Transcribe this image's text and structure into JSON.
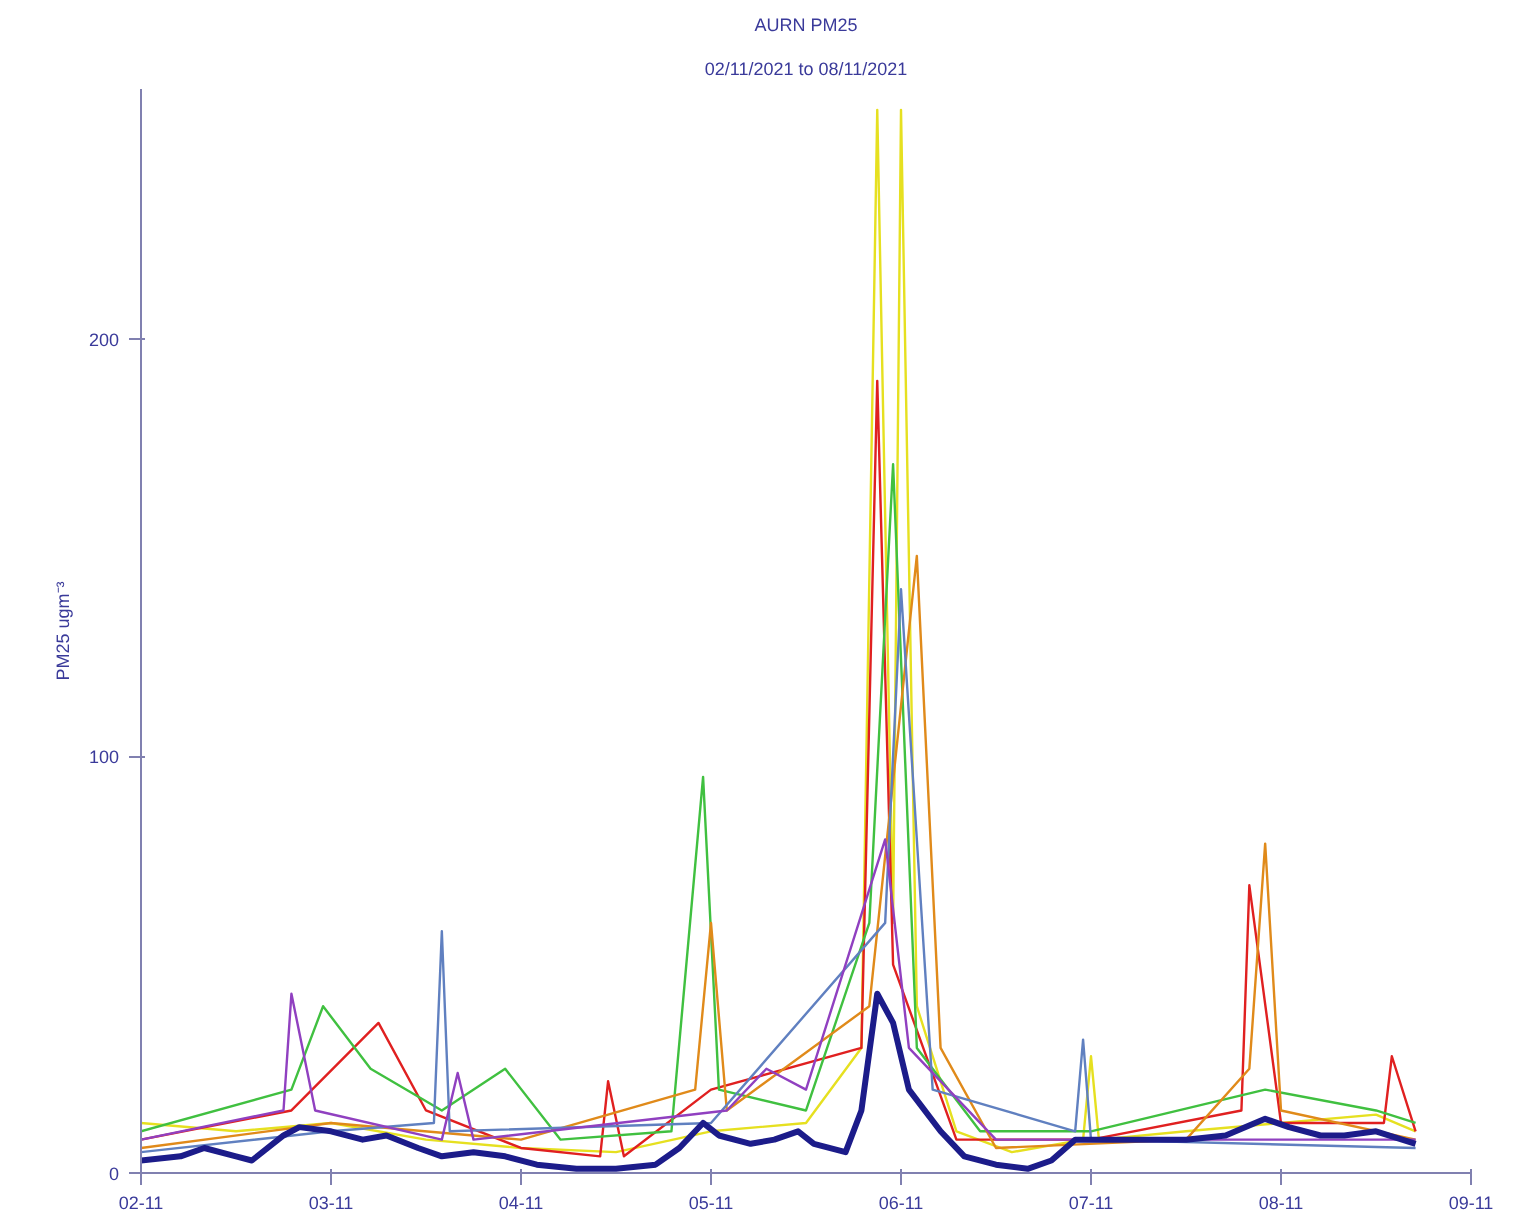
{
  "chart_data": {
    "type": "line",
    "title": "AURN PM25",
    "subtitle": "02/11/2021 to 08/11/2021",
    "ylabel": "PM25 ugm⁻³",
    "xlim": [
      "2021-11-02",
      "2021-11-09"
    ],
    "xticks": [
      {
        "value": "2021-11-02",
        "label": "02-11"
      },
      {
        "value": "2021-11-03",
        "label": "03-11"
      },
      {
        "value": "2021-11-04",
        "label": "04-11"
      },
      {
        "value": "2021-11-05",
        "label": "05-11"
      },
      {
        "value": "2021-11-06",
        "label": "06-11"
      },
      {
        "value": "2021-11-07",
        "label": "07-11"
      },
      {
        "value": "2021-11-08",
        "label": "08-11"
      },
      {
        "value": "2021-11-09",
        "label": "09-11"
      }
    ],
    "ylim": [
      0,
      260
    ],
    "yticks": [
      0,
      100,
      200
    ],
    "grid": false,
    "series": [
      {
        "color": "#e6e020",
        "x": [
          "2021-11-02T00:00",
          "2021-11-02T12:00",
          "2021-11-03T00:00",
          "2021-11-03T12:00",
          "2021-11-04T00:00",
          "2021-11-04T12:00",
          "2021-11-05T00:00",
          "2021-11-05T12:00",
          "2021-11-05T19:00",
          "2021-11-05T21:00",
          "2021-11-05T23:00",
          "2021-11-06T00:00",
          "2021-11-06T02:00",
          "2021-11-06T07:00",
          "2021-11-06T14:00",
          "2021-11-06T23:00",
          "2021-11-07T00:00",
          "2021-11-07T01:00",
          "2021-11-07T12:00",
          "2021-11-08T00:00",
          "2021-11-08T12:00",
          "2021-11-08T17:00"
        ],
        "values": [
          12,
          10,
          12,
          8,
          6,
          5,
          10,
          12,
          30,
          255,
          60,
          255,
          40,
          10,
          5,
          8,
          28,
          8,
          10,
          12,
          14,
          10
        ]
      },
      {
        "color": "#e02020",
        "x": [
          "2021-11-02T00:00",
          "2021-11-02T19:00",
          "2021-11-03T06:00",
          "2021-11-03T12:00",
          "2021-11-04T00:00",
          "2021-11-04T10:00",
          "2021-11-04T11:00",
          "2021-11-04T13:00",
          "2021-11-05T00:00",
          "2021-11-05T19:00",
          "2021-11-05T21:00",
          "2021-11-05T23:00",
          "2021-11-06T07:00",
          "2021-11-07T00:00",
          "2021-11-07T19:00",
          "2021-11-07T20:00",
          "2021-11-08T00:00",
          "2021-11-08T13:00",
          "2021-11-08T14:00",
          "2021-11-08T17:00"
        ],
        "values": [
          8,
          15,
          36,
          15,
          6,
          4,
          22,
          4,
          20,
          30,
          190,
          50,
          8,
          8,
          15,
          69,
          12,
          12,
          28,
          10
        ]
      },
      {
        "color": "#40c040",
        "x": [
          "2021-11-02T00:00",
          "2021-11-02T19:00",
          "2021-11-02T23:00",
          "2021-11-03T05:00",
          "2021-11-03T14:00",
          "2021-11-03T22:00",
          "2021-11-04T05:00",
          "2021-11-04T19:00",
          "2021-11-04T23:00",
          "2021-11-05T01:00",
          "2021-11-05T12:00",
          "2021-11-05T20:00",
          "2021-11-05T23:00",
          "2021-11-06T02:00",
          "2021-11-06T10:00",
          "2021-11-07T00:00",
          "2021-11-07T22:00",
          "2021-11-08T12:00",
          "2021-11-08T17:00"
        ],
        "values": [
          10,
          20,
          40,
          25,
          15,
          25,
          8,
          10,
          95,
          20,
          15,
          60,
          170,
          30,
          10,
          10,
          20,
          15,
          12
        ]
      },
      {
        "color": "#e08a1a",
        "x": [
          "2021-11-02T00:00",
          "2021-11-03T00:00",
          "2021-11-04T00:00",
          "2021-11-04T22:00",
          "2021-11-05T00:00",
          "2021-11-05T02:00",
          "2021-11-05T20:00",
          "2021-11-06T02:00",
          "2021-11-06T05:00",
          "2021-11-06T12:00",
          "2021-11-07T12:00",
          "2021-11-07T20:00",
          "2021-11-07T22:00",
          "2021-11-08T00:00",
          "2021-11-08T17:00"
        ],
        "values": [
          6,
          12,
          8,
          20,
          60,
          15,
          40,
          148,
          30,
          6,
          8,
          25,
          79,
          15,
          8
        ]
      },
      {
        "color": "#6080c0",
        "x": [
          "2021-11-02T00:00",
          "2021-11-03T00:00",
          "2021-11-03T13:00",
          "2021-11-03T14:00",
          "2021-11-03T15:00",
          "2021-11-05T00:00",
          "2021-11-05T22:00",
          "2021-11-06T00:00",
          "2021-11-06T04:00",
          "2021-11-06T22:00",
          "2021-11-06T23:00",
          "2021-11-07T00:00",
          "2021-11-08T17:00"
        ],
        "values": [
          5,
          10,
          12,
          58,
          10,
          12,
          60,
          140,
          20,
          10,
          32,
          8,
          6
        ]
      },
      {
        "color": "#9040c0",
        "x": [
          "2021-11-02T00:00",
          "2021-11-02T18:00",
          "2021-11-02T19:00",
          "2021-11-02T22:00",
          "2021-11-03T14:00",
          "2021-11-03T16:00",
          "2021-11-03T18:00",
          "2021-11-05T02:00",
          "2021-11-05T07:00",
          "2021-11-05T12:00",
          "2021-11-05T22:00",
          "2021-11-06T01:00",
          "2021-11-06T12:00",
          "2021-11-08T17:00"
        ],
        "values": [
          8,
          15,
          43,
          15,
          8,
          24,
          8,
          15,
          25,
          20,
          80,
          30,
          8,
          8
        ]
      },
      {
        "color": "#1c1c8a",
        "x": [
          "2021-11-02T00:00",
          "2021-11-02T05:00",
          "2021-11-02T08:00",
          "2021-11-02T12:00",
          "2021-11-02T14:00",
          "2021-11-02T18:00",
          "2021-11-02T20:00",
          "2021-11-03T00:00",
          "2021-11-03T04:00",
          "2021-11-03T07:00",
          "2021-11-03T11:00",
          "2021-11-03T14:00",
          "2021-11-03T18:00",
          "2021-11-03T22:00",
          "2021-11-04T02:00",
          "2021-11-04T07:00",
          "2021-11-04T12:00",
          "2021-11-04T17:00",
          "2021-11-04T20:00",
          "2021-11-04T23:00",
          "2021-11-05T01:00",
          "2021-11-05T05:00",
          "2021-11-05T08:00",
          "2021-11-05T11:00",
          "2021-11-05T13:00",
          "2021-11-05T17:00",
          "2021-11-05T19:00",
          "2021-11-05T21:00",
          "2021-11-05T23:00",
          "2021-11-06T01:00",
          "2021-11-06T05:00",
          "2021-11-06T08:00",
          "2021-11-06T12:00",
          "2021-11-06T16:00",
          "2021-11-06T19:00",
          "2021-11-06T22:00",
          "2021-11-07T02:00",
          "2021-11-07T07:00",
          "2021-11-07T12:00",
          "2021-11-07T17:00",
          "2021-11-07T22:00",
          "2021-11-08T01:00",
          "2021-11-08T05:00",
          "2021-11-08T08:00",
          "2021-11-08T12:00",
          "2021-11-08T17:00"
        ],
        "values": [
          3,
          4,
          6,
          4,
          3,
          9,
          11,
          10,
          8,
          9,
          6,
          4,
          5,
          4,
          2,
          1,
          1,
          2,
          6,
          12,
          9,
          7,
          8,
          10,
          7,
          5,
          15,
          43,
          36,
          20,
          10,
          4,
          2,
          1,
          3,
          8,
          8,
          8,
          8,
          9,
          13,
          11,
          9,
          9,
          10,
          7
        ]
      }
    ]
  }
}
